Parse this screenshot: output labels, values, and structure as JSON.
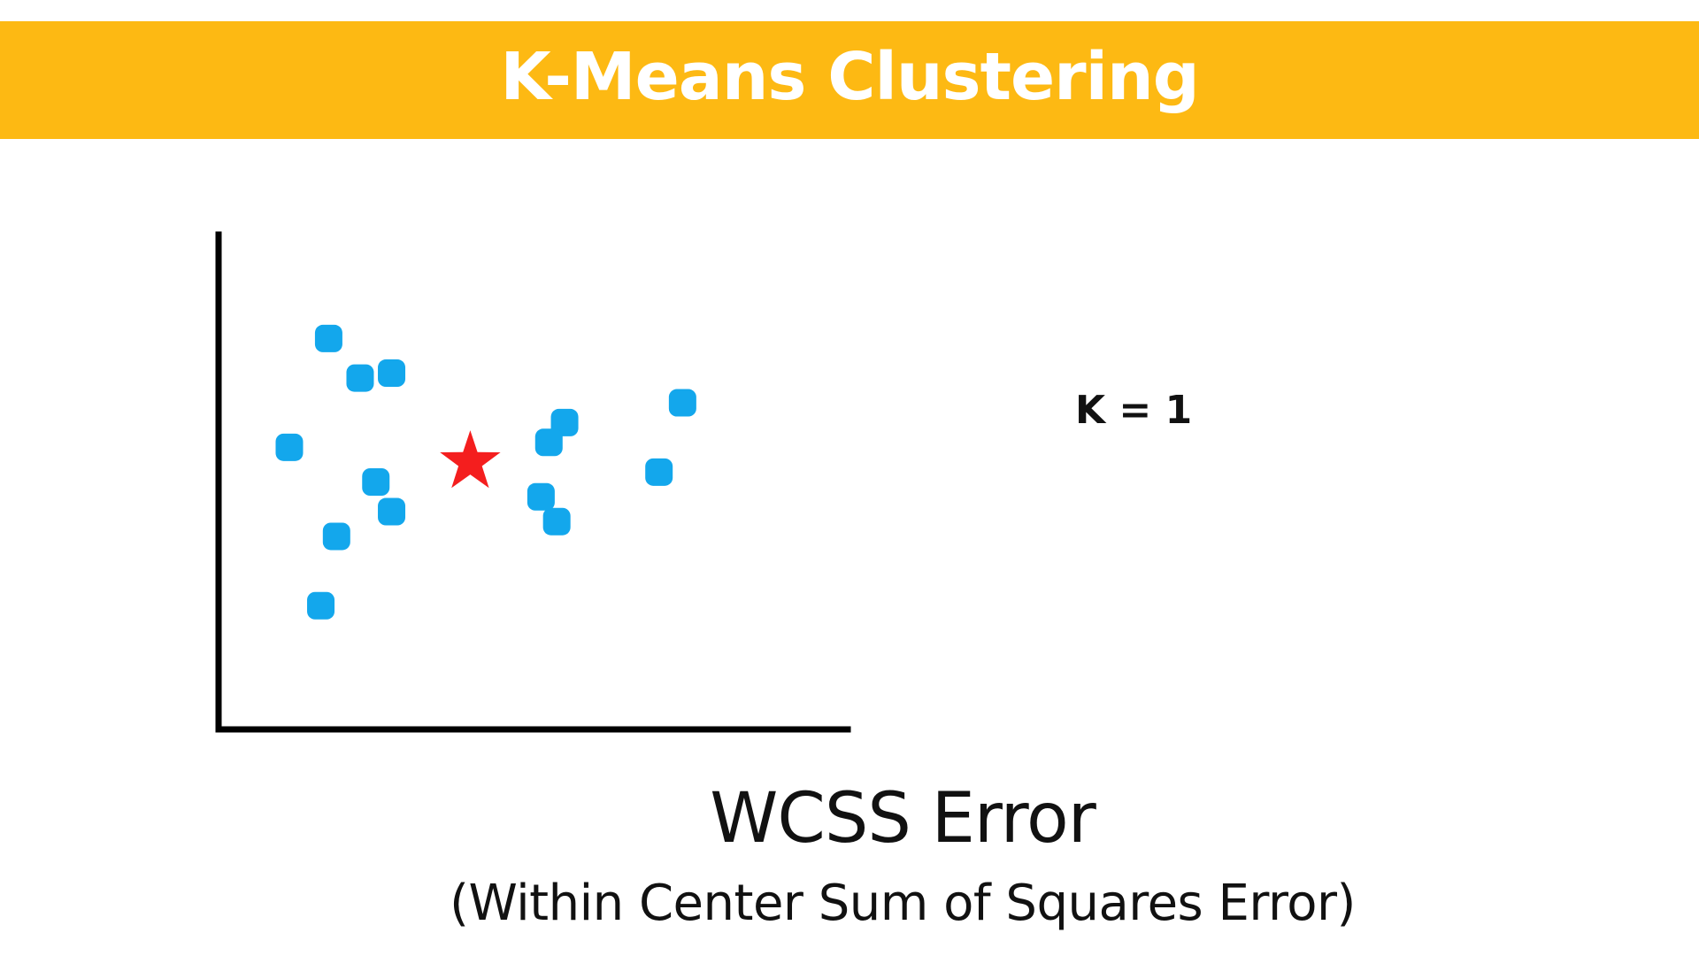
{
  "banner": {
    "title": "K-Means Clustering",
    "color": "#FDB913"
  },
  "diagram": {
    "k_label": "K = 1",
    "point_color": "#13A7EC",
    "centroid_color": "#F41E1E",
    "axis_color": "#000000",
    "points": [
      {
        "x": 1.4,
        "y": 7.9
      },
      {
        "x": 1.8,
        "y": 7.1
      },
      {
        "x": 2.2,
        "y": 7.2
      },
      {
        "x": 0.9,
        "y": 5.7
      },
      {
        "x": 2.0,
        "y": 5.0
      },
      {
        "x": 1.5,
        "y": 3.9
      },
      {
        "x": 2.2,
        "y": 4.4
      },
      {
        "x": 1.3,
        "y": 2.5
      },
      {
        "x": 4.3,
        "y": 4.2
      },
      {
        "x": 4.1,
        "y": 4.7
      },
      {
        "x": 5.6,
        "y": 5.2
      },
      {
        "x": 4.4,
        "y": 6.2
      },
      {
        "x": 5.9,
        "y": 6.6
      },
      {
        "x": 4.2,
        "y": 5.8
      }
    ],
    "centroid": {
      "x": 3.2,
      "y": 5.4
    }
  },
  "caption": {
    "main": "WCSS Error",
    "sub": "(Within Center Sum of Squares Error)"
  }
}
